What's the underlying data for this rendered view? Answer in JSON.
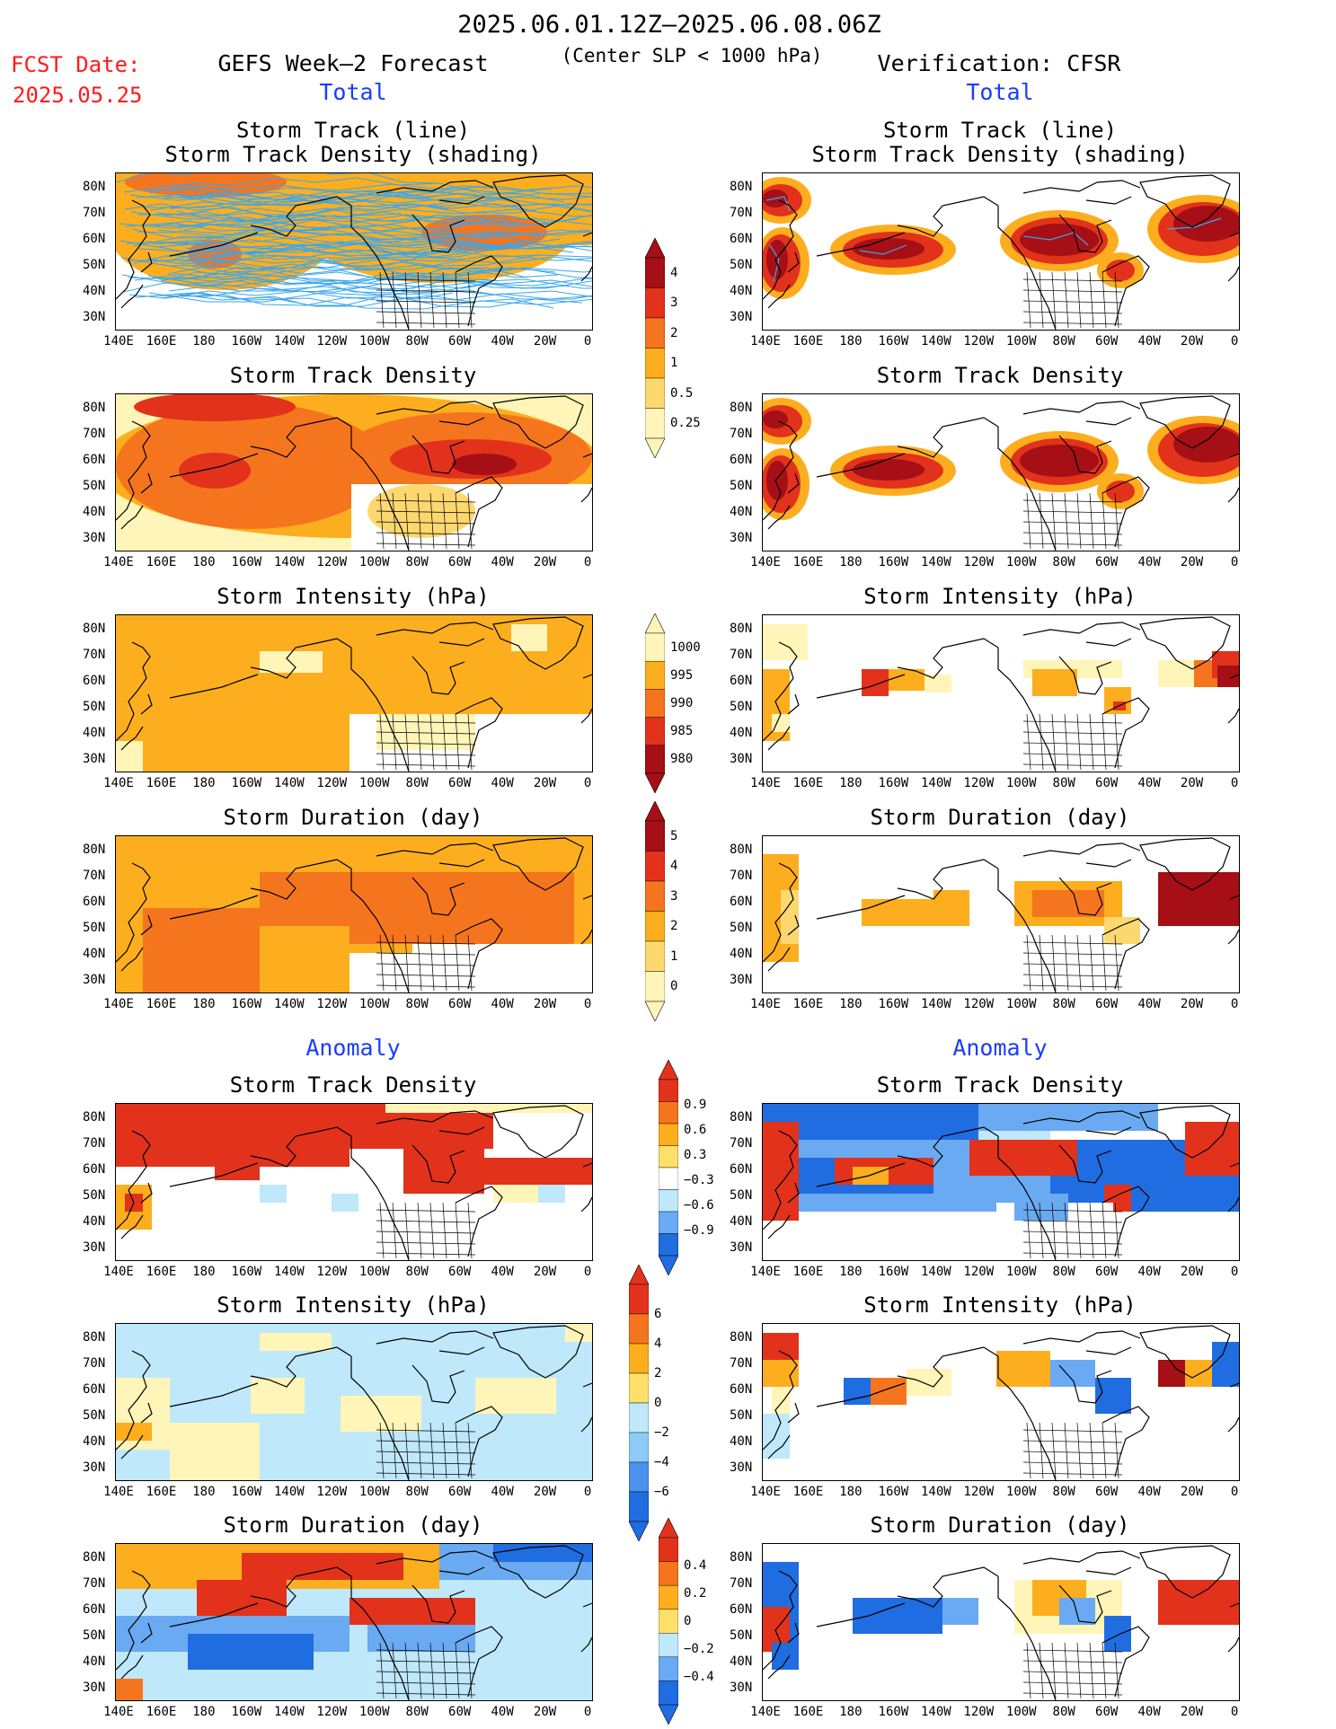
{
  "header": {
    "date_range": "2025.06.01.12Z–2025.06.08.06Z",
    "subtitle": "(Center SLP < 1000 hPa)",
    "fcst_label": "FCST Date:",
    "fcst_date": "2025.05.25",
    "left_title": "GEFS Week–2 Forecast",
    "right_title": "Verification: CFSR",
    "section_total": "Total",
    "section_anomaly": "Anomaly"
  },
  "axes": {
    "lat_labels": [
      "80N",
      "70N",
      "60N",
      "50N",
      "40N",
      "30N"
    ],
    "lon_labels": [
      "140E",
      "160E",
      "180",
      "160W",
      "140W",
      "120W",
      "100W",
      "80W",
      "60W",
      "40W",
      "20W",
      "0"
    ]
  },
  "panel_titles": {
    "track_line": "Storm Track (line)",
    "track_shading": "Storm Track Density (shading)",
    "density": "Storm Track Density",
    "intensity": "Storm Intensity (hPa)",
    "duration": "Storm Duration (day)"
  },
  "colorbars": {
    "density_total": {
      "labels": [
        "4",
        "3",
        "2",
        "1",
        "0.5",
        "0.25"
      ],
      "colors": [
        "#a50f15",
        "#e2321b",
        "#f5751e",
        "#fdae1e",
        "#fdd870",
        "#fff5b8"
      ]
    },
    "intensity_total": {
      "labels": [
        "1000",
        "995",
        "990",
        "985",
        "980"
      ],
      "colors": [
        "#fff5b8",
        "#fdae1e",
        "#f5751e",
        "#e2321b",
        "#a50f15"
      ]
    },
    "duration_total": {
      "labels": [
        "5",
        "4",
        "3",
        "2",
        "1",
        "0"
      ],
      "colors": [
        "#a50f15",
        "#e2321b",
        "#f5751e",
        "#fdae1e",
        "#fdd870",
        "#fff5b8"
      ]
    },
    "density_anom": {
      "labels": [
        "0.9",
        "0.6",
        "0.3",
        "−0.3",
        "−0.6",
        "−0.9"
      ],
      "colors": [
        "#e2321b",
        "#f5751e",
        "#fdae1e",
        "#fde06a",
        "#ffffff",
        "#bfe8fb",
        "#6aaaf2",
        "#1f6de0"
      ]
    },
    "intensity_anom": {
      "labels": [
        "6",
        "4",
        "2",
        "0",
        "−2",
        "−4",
        "−6"
      ],
      "colors": [
        "#e2321b",
        "#f5751e",
        "#fdae1e",
        "#fde06a",
        "#bfe8fb",
        "#8ccbf7",
        "#4a92ec",
        "#1f6de0"
      ]
    },
    "duration_anom": {
      "labels": [
        "0.4",
        "0.2",
        "0",
        "−0.2",
        "−0.4"
      ],
      "colors": [
        "#e2321b",
        "#f5751e",
        "#fdae1e",
        "#fde06a",
        "#bfe8fb",
        "#6aaaf2",
        "#1f6de0"
      ]
    }
  },
  "colors": {
    "red_text": "#ff1a1a",
    "blue_text": "#1a3cff",
    "track_line": "#3aa6ee"
  }
}
